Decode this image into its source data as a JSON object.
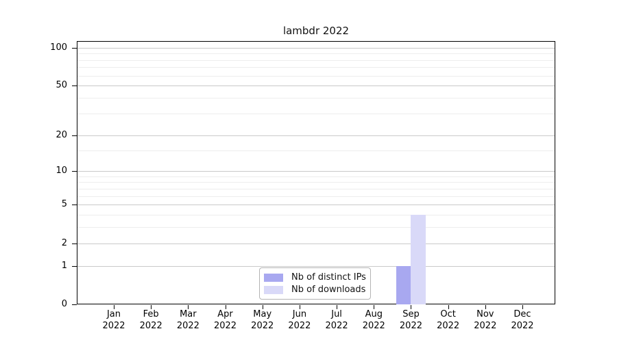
{
  "chart_data": {
    "type": "bar",
    "title": "lambdr 2022",
    "months": [
      "Jan",
      "Feb",
      "Mar",
      "Apr",
      "May",
      "Jun",
      "Jul",
      "Aug",
      "Sep",
      "Oct",
      "Nov",
      "Dec"
    ],
    "year": "2022",
    "series": [
      {
        "name": "Nb of distinct IPs",
        "color": "#a8a8f0",
        "values": [
          0,
          0,
          0,
          0,
          0,
          0,
          0,
          0,
          1,
          0,
          0,
          0
        ]
      },
      {
        "name": "Nb of downloads",
        "color": "#d9d9f8",
        "values": [
          0,
          0,
          0,
          0,
          0,
          0,
          0,
          0,
          4,
          0,
          0,
          0
        ]
      }
    ],
    "yscale": "log1p",
    "ylim": [
      0,
      113
    ],
    "y_major_ticks": [
      0,
      1,
      2,
      5,
      10,
      20,
      50,
      100
    ],
    "y_minor_ticks": [
      3,
      4,
      6,
      7,
      8,
      9,
      15,
      30,
      40,
      60,
      70,
      80,
      90
    ],
    "grid": true,
    "legend_position": "lower center",
    "colors": {
      "major_grid": "#c9c9c9",
      "minor_grid": "#ededed",
      "axis": "#000000",
      "background": "#ffffff"
    }
  }
}
